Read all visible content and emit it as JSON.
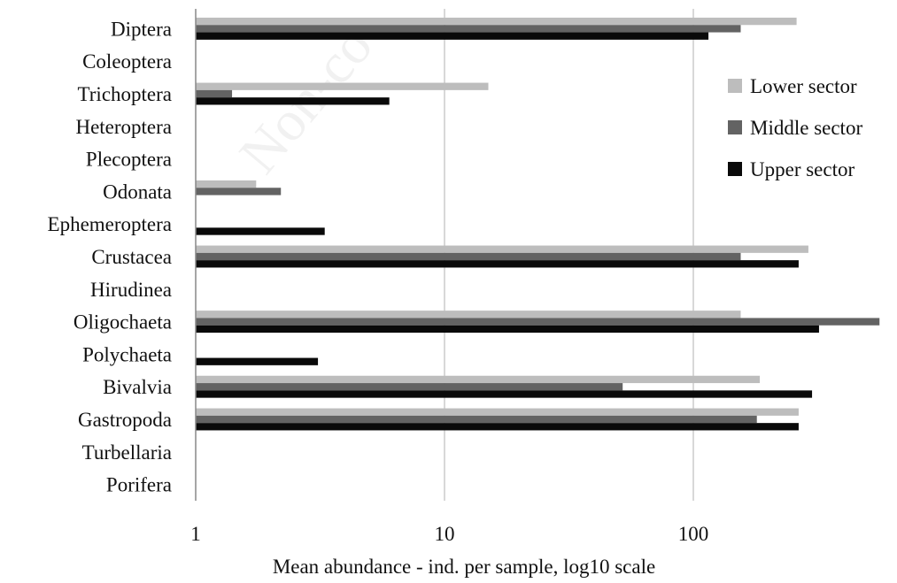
{
  "chart_data": {
    "type": "bar",
    "orientation": "horizontal",
    "categories": [
      "Diptera",
      "Coleoptera",
      "Trichoptera",
      "Heteroptera",
      "Plecoptera",
      "Odonata",
      "Ephemeroptera",
      "Crustacea",
      "Hirudinea",
      "Oligochaeta",
      "Polychaeta",
      "Bivalvia",
      "Gastropoda",
      "Turbellaria",
      "Porifera"
    ],
    "series": [
      {
        "name": "Lower sector",
        "color": "#bdbdbd",
        "values": [
          260,
          0,
          15,
          0,
          0,
          1.75,
          0,
          290,
          0,
          155,
          0,
          185,
          265,
          0,
          0
        ]
      },
      {
        "name": "Middle sector",
        "color": "#636363",
        "values": [
          155,
          0,
          1.4,
          0,
          0,
          2.2,
          0,
          155,
          0,
          560,
          0,
          52,
          180,
          0,
          0
        ]
      },
      {
        "name": "Upper sector",
        "color": "#0a0a0a",
        "values": [
          115,
          0,
          6,
          0,
          0,
          0,
          3.3,
          265,
          0,
          320,
          3.1,
          300,
          265,
          0,
          0
        ]
      }
    ],
    "xscale": "log10",
    "xlim": [
      1,
      600
    ],
    "xticks": [
      1,
      10,
      100
    ],
    "xtick_labels": [
      "1",
      "10",
      "100"
    ],
    "xlabel": "Mean abundance - ind. per sample, log10 scale",
    "grid": "vertical",
    "legend": "right",
    "watermark": "Non-co"
  }
}
